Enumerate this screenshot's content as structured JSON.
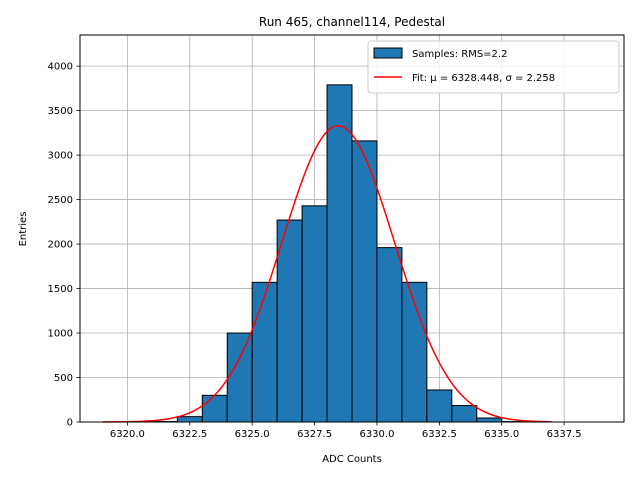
{
  "chart_data": {
    "type": "bar",
    "title": "Run 465, channel114, Pedestal",
    "xlabel": "ADC Counts",
    "ylabel": "Entries",
    "xlim": [
      6318.1,
      6339.9
    ],
    "ylim": [
      0,
      4350
    ],
    "grid": true,
    "legend_placement": "top-right",
    "xticks": [
      6320.0,
      6322.5,
      6325.0,
      6327.5,
      6330.0,
      6332.5,
      6335.0,
      6337.5
    ],
    "xtick_labels": [
      "6320.0",
      "6322.5",
      "6325.0",
      "6327.5",
      "6330.0",
      "6332.5",
      "6335.0",
      "6337.5"
    ],
    "yticks": [
      0,
      500,
      1000,
      1500,
      2000,
      2500,
      3000,
      3500,
      4000
    ],
    "ytick_labels": [
      "0",
      "500",
      "1000",
      "1500",
      "2000",
      "2500",
      "3000",
      "3500",
      "4000"
    ],
    "histogram": {
      "name": "Samples: RMS=2.2",
      "color": "#1f77b4",
      "edge_color": "#000000",
      "bin_edges": [
        6319.0,
        6320.0,
        6321.0,
        6322.0,
        6323.0,
        6324.0,
        6325.0,
        6326.0,
        6327.0,
        6328.0,
        6329.0,
        6330.0,
        6331.0,
        6332.0,
        6333.0,
        6334.0,
        6335.0,
        6336.0,
        6337.0,
        6338.0,
        6339.0
      ],
      "counts": [
        0,
        0,
        5,
        60,
        300,
        1000,
        1570,
        2270,
        2430,
        3790,
        3160,
        1960,
        1570,
        360,
        185,
        45,
        5,
        0,
        0,
        0
      ]
    },
    "fit": {
      "name": "Fit: μ = 6328.448, σ = 2.258",
      "color": "#ff0000",
      "mu": 6328.448,
      "sigma": 2.258,
      "amplitude": 3330,
      "x_range": [
        6319.0,
        6337.0
      ]
    }
  }
}
